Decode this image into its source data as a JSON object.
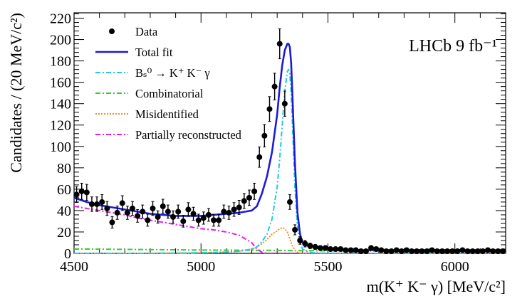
{
  "chart_data": {
    "type": "scatter",
    "experiment_label": "LHCb 9 fb⁻¹",
    "xlabel": "m(K⁺ K⁻ γ) [MeV/c²]",
    "ylabel": "Candidates / (20 MeV/c²)",
    "xlim": [
      4500,
      6200
    ],
    "ylim": [
      0,
      225
    ],
    "x_ticks": [
      4500,
      5000,
      5500,
      6000
    ],
    "y_ticks": [
      0,
      20,
      40,
      60,
      80,
      100,
      120,
      140,
      160,
      180,
      200,
      220
    ],
    "legend_position": "top-left",
    "legend": [
      {
        "key": "data",
        "label": "Data",
        "color": "#000000",
        "style": "marker"
      },
      {
        "key": "total",
        "label": "Total fit",
        "color": "#1c1cd6",
        "style": "solid"
      },
      {
        "key": "signal",
        "label": "Bₛ⁰ → K⁺ K⁻ γ",
        "color": "#22c8e6",
        "style": "dashdot"
      },
      {
        "key": "combinatorial",
        "label": "Combinatorial",
        "color": "#33cc33",
        "style": "dashdot"
      },
      {
        "key": "misid",
        "label": "Misidentified",
        "color": "#f28c28",
        "style": "dotted"
      },
      {
        "key": "partial",
        "label": "Partially reconstructed",
        "color": "#e61ee6",
        "style": "dashdot"
      }
    ],
    "data_points": {
      "x": [
        4510,
        4530,
        4550,
        4570,
        4590,
        4610,
        4630,
        4650,
        4670,
        4690,
        4710,
        4730,
        4750,
        4770,
        4790,
        4810,
        4830,
        4850,
        4870,
        4890,
        4910,
        4930,
        4950,
        4970,
        4990,
        5010,
        5030,
        5050,
        5070,
        5090,
        5110,
        5130,
        5150,
        5170,
        5190,
        5210,
        5230,
        5250,
        5270,
        5290,
        5310,
        5330,
        5350,
        5370,
        5390,
        5410,
        5430,
        5450,
        5470,
        5490,
        5510,
        5530,
        5550,
        5570,
        5590,
        5610,
        5630,
        5650,
        5670,
        5690,
        5710,
        5730,
        5750,
        5770,
        5790,
        5810,
        5830,
        5850,
        5870,
        5890,
        5910,
        5930,
        5950,
        5970,
        5990,
        6010,
        6030,
        6050,
        6070,
        6090,
        6110,
        6130,
        6150,
        6170,
        6190
      ],
      "y": [
        55,
        58,
        57,
        46,
        46,
        48,
        42,
        29,
        38,
        47,
        38,
        42,
        35,
        39,
        31,
        42,
        34,
        44,
        39,
        34,
        39,
        30,
        41,
        37,
        31,
        33,
        36,
        31,
        31,
        39,
        38,
        41,
        43,
        49,
        52,
        58,
        90,
        110,
        135,
        156,
        196,
        140,
        48,
        22,
        12,
        9,
        7,
        6,
        5,
        5,
        4,
        4,
        4,
        3,
        3,
        3,
        2,
        2,
        5,
        4,
        3,
        2,
        2,
        3,
        2,
        3,
        2,
        2,
        2,
        2,
        3,
        2,
        2,
        2,
        2,
        2,
        3,
        2,
        2,
        2,
        2,
        3,
        2,
        2,
        2
      ],
      "err": [
        7.4,
        7.6,
        7.5,
        6.8,
        6.8,
        6.9,
        6.5,
        5.4,
        6.2,
        6.9,
        6.2,
        6.5,
        5.9,
        6.2,
        5.6,
        6.5,
        5.8,
        6.6,
        6.2,
        5.8,
        6.2,
        5.5,
        6.4,
        6.1,
        5.6,
        5.7,
        6.0,
        5.6,
        5.6,
        6.2,
        6.2,
        6.4,
        6.6,
        7.0,
        7.2,
        7.6,
        9.5,
        10.5,
        11.6,
        12.5,
        14.0,
        11.8,
        6.9,
        4.7,
        3.5,
        3.0,
        2.6,
        2.4,
        2.2,
        2.2,
        2.0,
        2.0,
        2.0,
        1.7,
        1.7,
        1.7,
        1.4,
        1.4,
        2.2,
        2.0,
        1.7,
        1.4,
        1.4,
        1.7,
        1.4,
        1.7,
        1.4,
        1.4,
        1.4,
        1.4,
        1.7,
        1.4,
        1.4,
        1.4,
        1.4,
        1.4,
        1.7,
        1.4,
        1.4,
        1.4,
        1.4,
        1.7,
        1.4,
        1.4,
        1.4
      ]
    },
    "curves": {
      "x": [
        4500,
        4550,
        4600,
        4650,
        4700,
        4750,
        4800,
        4850,
        4900,
        4950,
        5000,
        5050,
        5100,
        5150,
        5200,
        5220,
        5240,
        5260,
        5280,
        5300,
        5310,
        5320,
        5330,
        5340,
        5345,
        5350,
        5355,
        5360,
        5370,
        5380,
        5390,
        5400,
        5420,
        5440,
        5460,
        5500,
        5600,
        5700,
        5800,
        5900,
        6000,
        6100,
        6200
      ],
      "total": [
        52,
        48,
        45,
        43,
        41,
        39,
        37,
        36,
        35,
        35,
        35,
        36,
        37,
        38,
        40,
        44,
        56,
        72,
        95,
        130,
        155,
        176,
        190,
        196,
        196,
        193,
        178,
        148,
        85,
        38,
        18,
        10,
        7,
        6,
        5,
        4,
        3,
        3,
        3,
        3,
        3,
        3,
        3
      ],
      "signal": [
        0,
        0,
        0,
        0,
        0,
        0,
        0,
        0.1,
        0.2,
        0.3,
        0.5,
        0.8,
        1.2,
        2,
        4,
        6,
        11,
        18,
        32,
        62,
        88,
        120,
        152,
        170,
        172,
        168,
        150,
        122,
        62,
        24,
        10,
        4,
        1.5,
        0.6,
        0.3,
        0.1,
        0,
        0,
        0,
        0,
        0,
        0,
        0
      ],
      "combinatorial": [
        4,
        4,
        3.9,
        3.8,
        3.7,
        3.6,
        3.5,
        3.4,
        3.3,
        3.2,
        3.1,
        3.0,
        3.0,
        2.9,
        2.9,
        2.8,
        2.8,
        2.8,
        2.7,
        2.7,
        2.7,
        2.7,
        2.7,
        2.6,
        2.6,
        2.6,
        2.6,
        2.6,
        2.6,
        2.6,
        2.5,
        2.5,
        2.5,
        2.5,
        2.4,
        2.4,
        2.3,
        2.2,
        2.1,
        2.0,
        2.0,
        1.9,
        1.9
      ],
      "misid": [
        0,
        0,
        0,
        0,
        0,
        0,
        0,
        0.1,
        0.2,
        0.3,
        0.5,
        0.8,
        1.2,
        2,
        4,
        6,
        9,
        13,
        18,
        21,
        23,
        24,
        23,
        20,
        17,
        14,
        10,
        7,
        3,
        1,
        0.3,
        0,
        0,
        0,
        0,
        0,
        0,
        0,
        0,
        0,
        0,
        0,
        0
      ],
      "partial": [
        44,
        42,
        40,
        38,
        36,
        33,
        31,
        29,
        27,
        25,
        23,
        22,
        20,
        17,
        10,
        4,
        1,
        0,
        0,
        0,
        0,
        0,
        0,
        0,
        0,
        0,
        0,
        0,
        0,
        0,
        0,
        0,
        0,
        0,
        0,
        0,
        0,
        0,
        0,
        0,
        0,
        0,
        0
      ]
    }
  }
}
